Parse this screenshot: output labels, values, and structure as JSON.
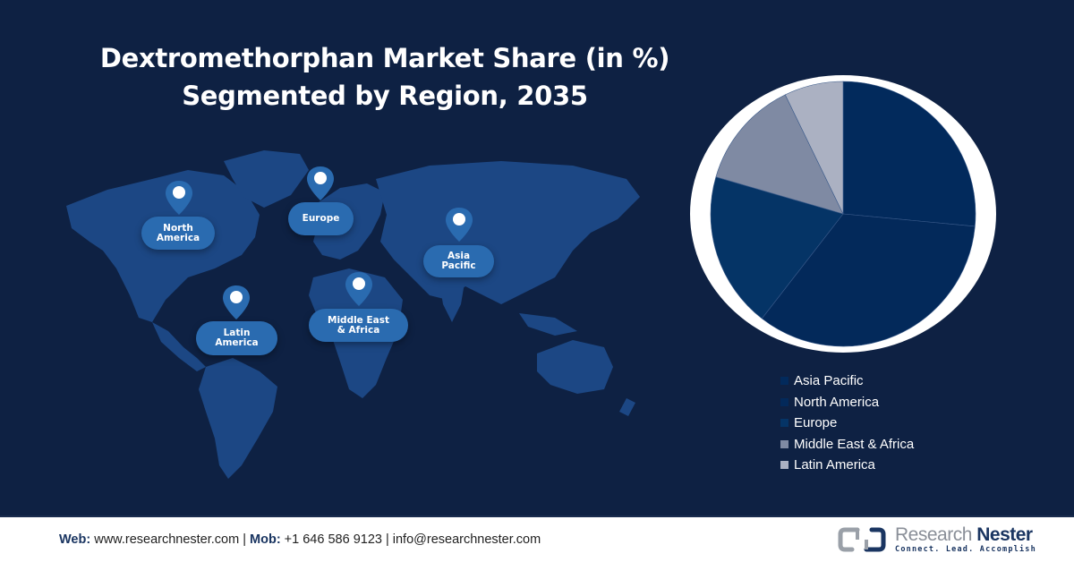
{
  "title": {
    "line1": "Dextromethorphan Market Share (in %)",
    "line2": "Segmented by Region, 2035"
  },
  "map": {
    "regions": [
      {
        "label": "North\nAmerica",
        "pin_icon": "location-pin-icon"
      },
      {
        "label": "Europe",
        "pin_icon": "location-pin-icon"
      },
      {
        "label": "Asia\nPacific",
        "pin_icon": "location-pin-icon"
      },
      {
        "label": "Latin\nAmerica",
        "pin_icon": "location-pin-icon"
      },
      {
        "label": "Middle East\n& Africa",
        "pin_icon": "location-pin-icon"
      }
    ]
  },
  "chart_data": {
    "type": "pie",
    "title": "Dextromethorphan Market Share (in %) Segmented by Region, 2035",
    "categories": [
      "Asia Pacific",
      "North America",
      "Europe",
      "Middle East & Africa",
      "Latin America"
    ],
    "values": [
      26.5,
      34,
      19,
      13.3,
      7.2
    ],
    "colors": [
      "#022a5c",
      "#03295a",
      "#053466",
      "#7f8aa3",
      "#abb1c2"
    ],
    "start_angle_deg": 0,
    "direction": "clockwise",
    "legend_position": "bottom-right",
    "data_labels": false
  },
  "legend": {
    "items": [
      {
        "label": "Asia Pacific",
        "color": "#022a5c"
      },
      {
        "label": "North America",
        "color": "#03295a"
      },
      {
        "label": "Europe",
        "color": "#053466"
      },
      {
        "label": "Middle East & Africa",
        "color": "#7f8aa3"
      },
      {
        "label": "Latin America",
        "color": "#abb1c2"
      }
    ]
  },
  "footer": {
    "web_label": "Web:",
    "web_value": " www.researchnester.com | ",
    "mob_label": "Mob:",
    "mob_value": " +1 646 586 9123 | info@researchnester.com",
    "logo_word1": "Research",
    "logo_word2": "Nester",
    "logo_tagline": "Connect. Lead. Accomplish"
  },
  "colors": {
    "background": "#0e2143",
    "map_land": "#1f4f8f",
    "pill": "#2a6bb0",
    "pie_ring": "#ffffff"
  }
}
